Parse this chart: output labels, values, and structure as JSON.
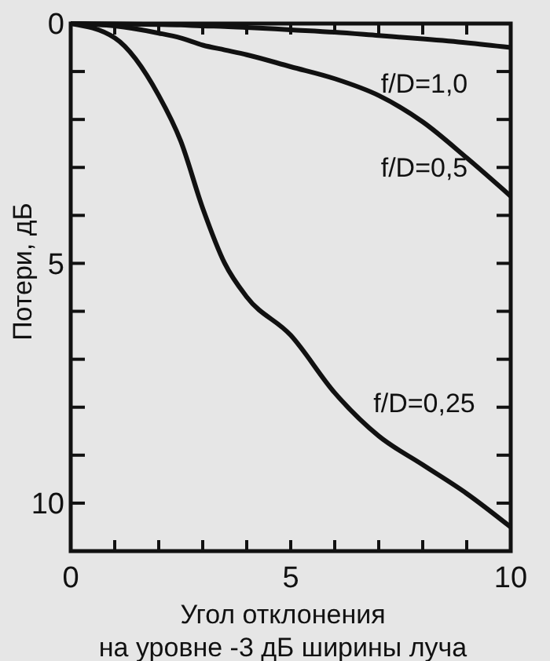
{
  "chart_data": {
    "type": "line",
    "xlabel": "Угол отклонения\nна уровне -3 дБ ширины луча",
    "ylabel": "Потери, дБ",
    "xlim": [
      0,
      10
    ],
    "ylim": [
      11,
      0
    ],
    "xticks": [
      0,
      {
        "value": 1,
        "label": null
      },
      {
        "value": 2,
        "label": null
      },
      {
        "value": 3,
        "label": null
      },
      {
        "value": 4,
        "label": null
      },
      5,
      {
        "value": 6,
        "label": null
      },
      {
        "value": 7,
        "label": null
      },
      {
        "value": 8,
        "label": null
      },
      {
        "value": 9,
        "label": null
      },
      10
    ],
    "yticks": [
      0,
      {
        "value": 1,
        "label": null
      },
      {
        "value": 2,
        "label": null
      },
      {
        "value": 3,
        "label": null
      },
      {
        "value": 4,
        "label": null
      },
      5,
      {
        "value": 6,
        "label": null
      },
      {
        "value": 7,
        "label": null
      },
      {
        "value": 8,
        "label": null
      },
      {
        "value": 9,
        "label": null
      },
      10,
      {
        "value": 11,
        "label": null
      }
    ],
    "grid": false,
    "legend": "right",
    "marker": "none",
    "line_style": "solid",
    "x": [
      0,
      1,
      2,
      2.5,
      3,
      3.5,
      4,
      5,
      6,
      7,
      8,
      9,
      10
    ],
    "series": [
      {
        "name": "f/D=1,0",
        "color": "#111111",
        "values": [
          0,
          0.01,
          0.02,
          0.03,
          0.05,
          0.06,
          0.08,
          0.13,
          0.18,
          0.25,
          0.32,
          0.4,
          0.5
        ]
      },
      {
        "name": "f/D=0,5",
        "color": "#111111",
        "values": [
          0,
          0.05,
          0.2,
          0.3,
          0.45,
          0.55,
          0.65,
          0.9,
          1.15,
          1.5,
          2.05,
          2.8,
          3.6
        ]
      },
      {
        "name": "f/D=0,25",
        "color": "#111111",
        "values": [
          0,
          0.3,
          1.5,
          2.45,
          3.85,
          5.0,
          5.7,
          6.5,
          7.7,
          8.6,
          9.2,
          9.8,
          10.5
        ]
      }
    ]
  }
}
